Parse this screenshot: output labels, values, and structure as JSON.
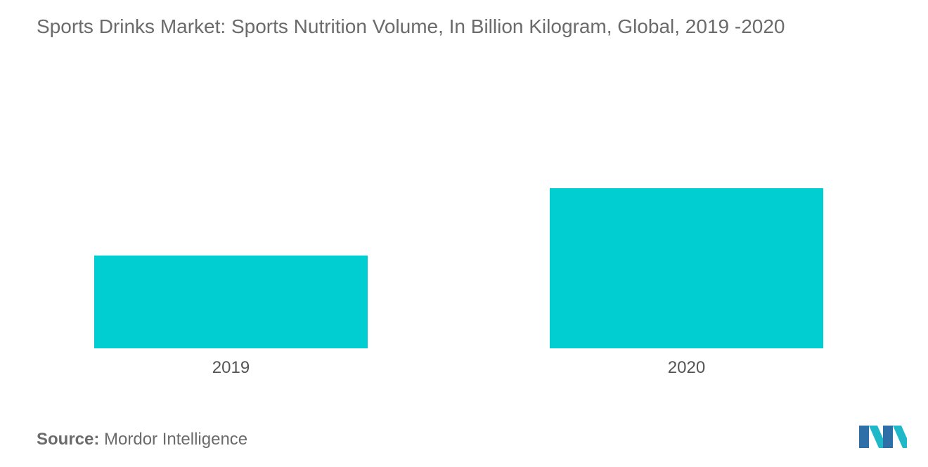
{
  "chart_data": {
    "type": "bar",
    "title": "Sports Drinks Market:  Sports Nutrition Volume, In Billion Kilogram, Global,  2019 -2020",
    "categories": [
      "2019",
      "2020"
    ],
    "values": [
      58,
      100
    ],
    "xlabel": "",
    "ylabel": "",
    "ylim": [
      0,
      100
    ],
    "grid": false,
    "legend": "none",
    "bar_color": "#00CED1"
  },
  "source": {
    "label": "Source:",
    "text": "Mordor Intelligence"
  },
  "logo": {
    "icon": "mordor-intelligence-logo-icon",
    "colors": [
      "#2E6FA8",
      "#1FB8C9"
    ]
  }
}
